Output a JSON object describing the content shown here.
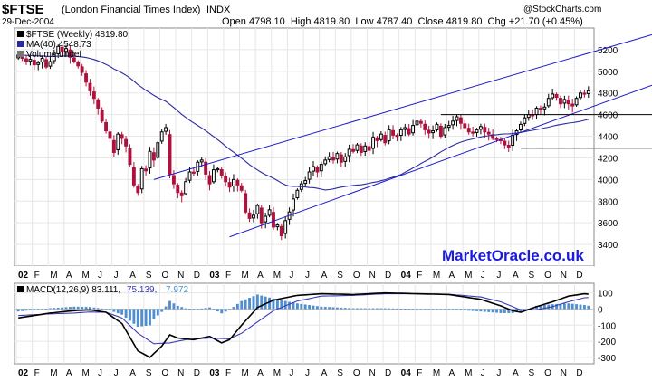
{
  "header": {
    "symbol": "$FTSE",
    "name": "(London Financial Times Index)",
    "exchange": "INDX",
    "date": "29-Dec-2004",
    "copyright": "@StockCharts.com",
    "ohlc_text": "Open 4798.10  High 4819.80  Low 4787.40  Close 4819.80  Chg +21.70 (+0.45%)"
  },
  "legend": {
    "price_label": "$FTSE (Weekly) 4819.80",
    "ma_label": "MA(40) 4548.73",
    "volume_label": "Volume undef",
    "macd_label_main": "MACD(12,26,9) 83.111,",
    "macd_label_signal": "75.139,",
    "macd_label_hist": "7.972"
  },
  "watermark": "MarketOracle.co.uk",
  "colors": {
    "up_candle": "#000000",
    "down_candle": "#b0103c",
    "ma_line": "#2a2aa0",
    "trend_line": "#1a1ac8",
    "macd_line": "#000000",
    "signal_line": "#3a3ab8",
    "histogram": "#4f8ecf",
    "watermark": "#1a1ae0",
    "grid": "#e6e6e6"
  },
  "chart_data": [
    {
      "type": "candlestick",
      "title": "$FTSE (Weekly)",
      "period": "weekly",
      "ylim": [
        3200,
        5400
      ],
      "yticks": [
        3400,
        3600,
        3800,
        4000,
        4200,
        4400,
        4600,
        4800,
        5000,
        5200
      ],
      "xticks": [
        "02",
        "F",
        "M",
        "A",
        "M",
        "J",
        "J",
        "A",
        "S",
        "O",
        "N",
        "D",
        "03",
        "F",
        "M",
        "A",
        "M",
        "J",
        "J",
        "A",
        "S",
        "O",
        "N",
        "D",
        "04",
        "F",
        "M",
        "A",
        "M",
        "J",
        "J",
        "A",
        "S",
        "O",
        "N",
        "D"
      ],
      "weekly_close": [
        5150,
        5120,
        5090,
        5110,
        5060,
        5080,
        5120,
        5040,
        5090,
        5150,
        5230,
        5180,
        5210,
        5130,
        5090,
        5050,
        4990,
        4900,
        4820,
        4750,
        4660,
        4540,
        4450,
        4380,
        4250,
        4420,
        4380,
        4310,
        4140,
        3950,
        3880,
        4100,
        4080,
        4260,
        4180,
        4340,
        4440,
        4480,
        4050,
        3960,
        3880,
        3850,
        3980,
        4070,
        4060,
        4160,
        4180,
        4050,
        3960,
        4090,
        4100,
        4040,
        3980,
        3930,
        4000,
        3950,
        3900,
        3700,
        3640,
        3670,
        3760,
        3600,
        3660,
        3720,
        3560,
        3580,
        3480,
        3620,
        3700,
        3820,
        3900,
        3960,
        3990,
        4070,
        4120,
        4070,
        4140,
        4180,
        4210,
        4180,
        4240,
        4160,
        4210,
        4280,
        4260,
        4320,
        4250,
        4310,
        4270,
        4390,
        4360,
        4420,
        4340,
        4460,
        4410,
        4400,
        4460,
        4480,
        4420,
        4500,
        4540,
        4520,
        4460,
        4430,
        4450,
        4510,
        4400,
        4480,
        4500,
        4540,
        4580,
        4520,
        4480,
        4440,
        4430,
        4460,
        4490,
        4440,
        4420,
        4380,
        4370,
        4360,
        4320,
        4300,
        4410,
        4450,
        4510,
        4570,
        4600,
        4590,
        4660,
        4650,
        4670,
        4750,
        4790,
        4760,
        4700,
        4740,
        4700,
        4680,
        4750,
        4800,
        4790,
        4820
      ],
      "ma": {
        "name": "MA(40)",
        "last": 4548.73
      },
      "last": {
        "open": 4798.1,
        "high": 4819.8,
        "low": 4787.4,
        "close": 4819.8,
        "change": 21.7,
        "change_pct": 0.45
      },
      "annotations": [
        {
          "type": "trendline",
          "from": {
            "week": 34,
            "value": 4000
          },
          "to": {
            "week": 146,
            "value": 5200
          }
        },
        {
          "type": "trendline",
          "from": {
            "week": 53,
            "value": 3470
          },
          "to": {
            "week": 146,
            "value": 4700
          }
        },
        {
          "type": "hline",
          "from_week": 106,
          "value": 4600
        },
        {
          "type": "hline",
          "from_week": 126,
          "value": 4290
        }
      ]
    },
    {
      "type": "line",
      "title": "MACD(12,26,9)",
      "ylim": [
        -340,
        160
      ],
      "yticks": [
        -300,
        -200,
        -100,
        0,
        100
      ],
      "series": [
        {
          "name": "MACD",
          "last": 83.111
        },
        {
          "name": "Signal",
          "last": 75.139
        },
        {
          "name": "Histogram",
          "last": 7.972
        }
      ],
      "macd_keypoints": [
        [
          0,
          -55
        ],
        [
          8,
          -25
        ],
        [
          14,
          -10
        ],
        [
          18,
          -5
        ],
        [
          22,
          -20
        ],
        [
          26,
          -90
        ],
        [
          30,
          -260
        ],
        [
          33,
          -300
        ],
        [
          36,
          -230
        ],
        [
          38,
          -160
        ],
        [
          40,
          -180
        ],
        [
          44,
          -190
        ],
        [
          48,
          -170
        ],
        [
          51,
          -210
        ],
        [
          53,
          -190
        ],
        [
          56,
          -100
        ],
        [
          60,
          10
        ],
        [
          64,
          55
        ],
        [
          70,
          85
        ],
        [
          76,
          95
        ],
        [
          84,
          90
        ],
        [
          92,
          100
        ],
        [
          100,
          95
        ],
        [
          108,
          90
        ],
        [
          116,
          60
        ],
        [
          121,
          20
        ],
        [
          124,
          -10
        ],
        [
          126,
          -20
        ],
        [
          130,
          15
        ],
        [
          134,
          45
        ],
        [
          138,
          80
        ],
        [
          142,
          95
        ],
        [
          146,
          83
        ]
      ],
      "signal_keypoints": [
        [
          0,
          -40
        ],
        [
          8,
          -30
        ],
        [
          14,
          -25
        ],
        [
          18,
          -18
        ],
        [
          22,
          -20
        ],
        [
          26,
          -55
        ],
        [
          30,
          -150
        ],
        [
          34,
          -215
        ],
        [
          38,
          -210
        ],
        [
          42,
          -190
        ],
        [
          48,
          -180
        ],
        [
          53,
          -185
        ],
        [
          56,
          -150
        ],
        [
          60,
          -80
        ],
        [
          64,
          -10
        ],
        [
          70,
          50
        ],
        [
          76,
          80
        ],
        [
          84,
          85
        ],
        [
          92,
          95
        ],
        [
          100,
          95
        ],
        [
          108,
          92
        ],
        [
          116,
          75
        ],
        [
          121,
          45
        ],
        [
          124,
          15
        ],
        [
          126,
          -5
        ],
        [
          130,
          -5
        ],
        [
          134,
          15
        ],
        [
          138,
          45
        ],
        [
          142,
          70
        ],
        [
          146,
          75
        ]
      ]
    }
  ]
}
